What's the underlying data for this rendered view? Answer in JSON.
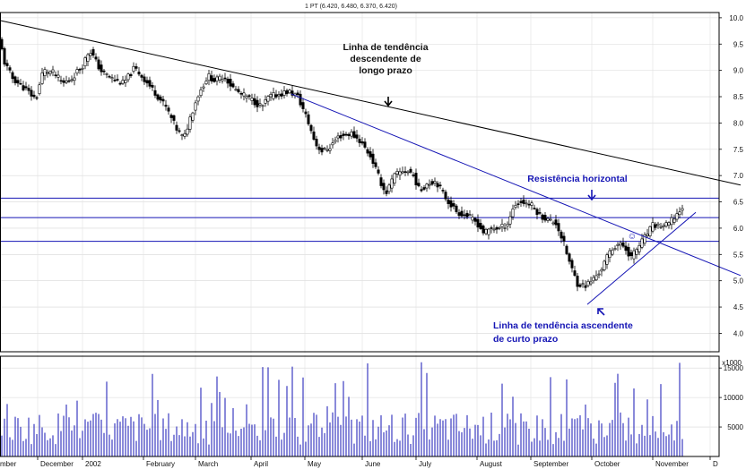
{
  "chart_data": {
    "type": "candlestick",
    "header": "1 PT (6.420, 6.480, 6.370, 6.420)",
    "price_axis": {
      "ticks": [
        "4.0",
        "4.5",
        "5.0",
        "5.5",
        "6.0",
        "6.5",
        "7.0",
        "7.5",
        "8.0",
        "8.5",
        "9.0",
        "9.5",
        "10.0"
      ],
      "ylim": [
        3.65,
        10.1
      ]
    },
    "volume_axis": {
      "ticks": [
        "5000",
        "10000",
        "15000"
      ],
      "unit_label": "x1000",
      "ylim": [
        0,
        17000
      ]
    },
    "x_axis": {
      "labels": [
        "mber",
        "December",
        "2002",
        "February",
        "March",
        "April",
        "May",
        "June",
        "July",
        "August",
        "September",
        "October",
        "November",
        "D"
      ]
    },
    "colors": {
      "up": "#ffffff",
      "down": "#000000",
      "trend": "#1515b5",
      "volume": "#1515b5",
      "long_trend": "#000000"
    },
    "key_levels": [
      6.57,
      6.2,
      5.75
    ],
    "trendlines": [
      {
        "style": "long",
        "from": [
          0,
          9.95
        ],
        "to": [
          826,
          6.82
        ]
      },
      {
        "style": "blue",
        "from": [
          325,
          8.55
        ],
        "to": [
          826,
          5.1
        ]
      },
      {
        "style": "blue",
        "from": [
          655,
          4.55
        ],
        "to": [
          776,
          6.3
        ]
      }
    ],
    "annotations": [
      {
        "lines": [
          "Linha de tendência",
          "descendente de",
          "longo prazo"
        ],
        "color": "black"
      },
      {
        "lines": [
          "Resistência horizontal"
        ],
        "color": "blue"
      },
      {
        "lines": [
          "Linha de tendência ascendente",
          "de curto prazo"
        ],
        "color": "blue"
      }
    ],
    "smiley": "☺",
    "price_anchors": [
      [
        0,
        9.55
      ],
      [
        5,
        9.15
      ],
      [
        14,
        8.85
      ],
      [
        28,
        8.65
      ],
      [
        40,
        8.45
      ],
      [
        48,
        9.0
      ],
      [
        60,
        8.95
      ],
      [
        70,
        8.75
      ],
      [
        80,
        8.85
      ],
      [
        92,
        9.1
      ],
      [
        100,
        9.4
      ],
      [
        112,
        9.0
      ],
      [
        124,
        8.85
      ],
      [
        138,
        8.75
      ],
      [
        150,
        9.05
      ],
      [
        160,
        8.85
      ],
      [
        172,
        8.6
      ],
      [
        185,
        8.3
      ],
      [
        198,
        7.85
      ],
      [
        205,
        7.7
      ],
      [
        212,
        8.1
      ],
      [
        220,
        8.5
      ],
      [
        232,
        8.9
      ],
      [
        240,
        8.8
      ],
      [
        250,
        8.9
      ],
      [
        258,
        8.7
      ],
      [
        268,
        8.55
      ],
      [
        280,
        8.45
      ],
      [
        292,
        8.3
      ],
      [
        300,
        8.5
      ],
      [
        312,
        8.55
      ],
      [
        322,
        8.6
      ],
      [
        332,
        8.5
      ],
      [
        342,
        8.1
      ],
      [
        352,
        7.6
      ],
      [
        360,
        7.45
      ],
      [
        368,
        7.55
      ],
      [
        378,
        7.75
      ],
      [
        392,
        7.8
      ],
      [
        402,
        7.65
      ],
      [
        414,
        7.35
      ],
      [
        424,
        6.9
      ],
      [
        430,
        6.65
      ],
      [
        440,
        7.0
      ],
      [
        450,
        7.1
      ],
      [
        460,
        7.05
      ],
      [
        468,
        6.7
      ],
      [
        476,
        6.85
      ],
      [
        486,
        6.9
      ],
      [
        498,
        6.55
      ],
      [
        510,
        6.3
      ],
      [
        520,
        6.25
      ],
      [
        532,
        6.1
      ],
      [
        540,
        5.9
      ],
      [
        548,
        6.0
      ],
      [
        558,
        6.0
      ],
      [
        566,
        6.1
      ],
      [
        574,
        6.45
      ],
      [
        582,
        6.5
      ],
      [
        592,
        6.45
      ],
      [
        602,
        6.25
      ],
      [
        612,
        6.15
      ],
      [
        620,
        6.1
      ],
      [
        628,
        5.75
      ],
      [
        636,
        5.3
      ],
      [
        644,
        4.95
      ],
      [
        652,
        4.9
      ],
      [
        660,
        5.0
      ],
      [
        670,
        5.2
      ],
      [
        680,
        5.55
      ],
      [
        688,
        5.7
      ],
      [
        696,
        5.65
      ],
      [
        704,
        5.45
      ],
      [
        712,
        5.65
      ],
      [
        720,
        5.85
      ],
      [
        728,
        6.05
      ],
      [
        736,
        6.05
      ],
      [
        744,
        6.05
      ],
      [
        752,
        6.2
      ],
      [
        762,
        6.42
      ]
    ]
  }
}
